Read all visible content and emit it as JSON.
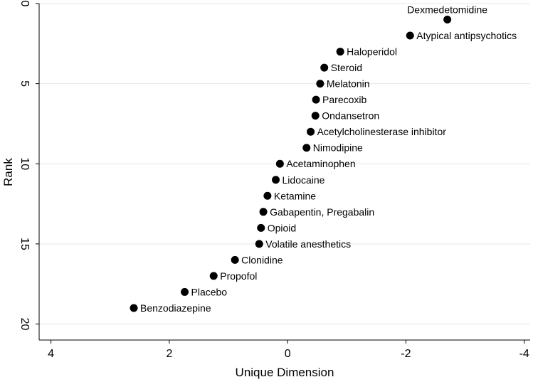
{
  "chart_data": {
    "type": "scatter",
    "xlabel": "Unique Dimension",
    "ylabel": "Rank",
    "xlim": [
      4.2,
      -4.1
    ],
    "ylim": [
      0,
      21
    ],
    "x_ticks": [
      4,
      2,
      0,
      -2,
      -4
    ],
    "y_ticks": [
      0,
      5,
      10,
      15,
      20
    ],
    "x_reversed": true,
    "y_reversed": true,
    "grid": "horizontal",
    "marker_color": "#000000",
    "gridline_color": "#dde9ea",
    "points": [
      {
        "label": "Dexmedetomidine",
        "x": -2.7,
        "y": 1
      },
      {
        "label": "Atypical antipsychotics",
        "x": -2.07,
        "y": 2
      },
      {
        "label": "Haloperidol",
        "x": -0.89,
        "y": 3
      },
      {
        "label": "Steroid",
        "x": -0.62,
        "y": 4
      },
      {
        "label": "Melatonin",
        "x": -0.55,
        "y": 5
      },
      {
        "label": "Parecoxib",
        "x": -0.48,
        "y": 6
      },
      {
        "label": "Ondansetron",
        "x": -0.47,
        "y": 7
      },
      {
        "label": "Acetylcholinesterase inhibitor",
        "x": -0.39,
        "y": 8
      },
      {
        "label": "Nimodipine",
        "x": -0.32,
        "y": 9
      },
      {
        "label": "Acetaminophen",
        "x": 0.13,
        "y": 10
      },
      {
        "label": "Lidocaine",
        "x": 0.2,
        "y": 11
      },
      {
        "label": "Ketamine",
        "x": 0.34,
        "y": 12
      },
      {
        "label": "Gabapentin, Pregabalin",
        "x": 0.41,
        "y": 13
      },
      {
        "label": "Opioid",
        "x": 0.45,
        "y": 14
      },
      {
        "label": "Volatile anesthetics",
        "x": 0.48,
        "y": 15
      },
      {
        "label": "Clonidine",
        "x": 0.89,
        "y": 16
      },
      {
        "label": "Propofol",
        "x": 1.25,
        "y": 17
      },
      {
        "label": "Placebo",
        "x": 1.74,
        "y": 18
      },
      {
        "label": "Benzodiazepine",
        "x": 2.6,
        "y": 19
      }
    ]
  }
}
